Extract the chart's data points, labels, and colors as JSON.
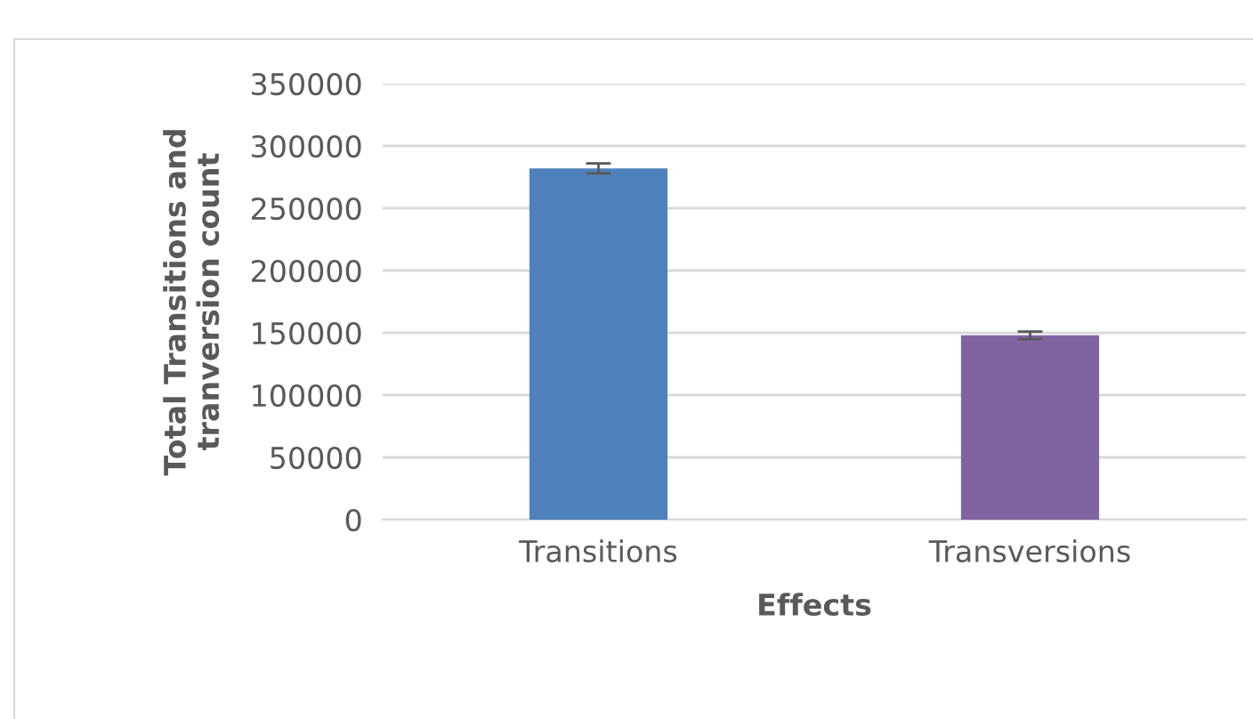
{
  "chart_data": {
    "type": "bar",
    "categories": [
      "Transitions",
      "Transversions"
    ],
    "values": [
      282000,
      148000
    ],
    "errors": [
      4000,
      3000
    ],
    "colors": [
      "#4f81bd",
      "#8064a2"
    ],
    "xlabel": "Effects",
    "ylabel": "Total Transitions and\ntranversion count",
    "ylim": [
      0,
      350000
    ],
    "yticks": [
      0,
      50000,
      100000,
      150000,
      200000,
      250000,
      300000,
      350000
    ],
    "grid": "y"
  }
}
